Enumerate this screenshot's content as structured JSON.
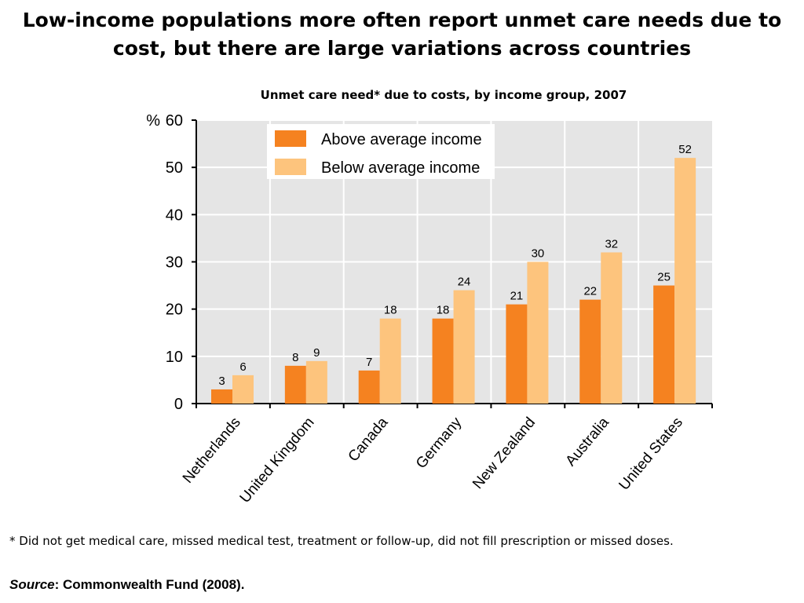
{
  "title_line1": "Low-income populations more often report unmet care needs due to",
  "title_line2": "cost, but there are large variations across countries",
  "footnote": "* Did not get medical care, missed medical test, treatment or follow-up, did not fill prescription or missed doses.",
  "source_label": "Source",
  "source_text": ": Commonwealth Fund (2008).",
  "chart_data": {
    "type": "bar",
    "title": "Unmet care need* due to costs, by income group, 2007",
    "ylabel": "%",
    "ylim": [
      0,
      60
    ],
    "yticks": [
      0,
      10,
      20,
      30,
      40,
      50,
      60
    ],
    "grid": true,
    "legend_position": "top-left",
    "categories": [
      "Netherlands",
      "United Kingdom",
      "Canada",
      "Germany",
      "New Zealand",
      "Australia",
      "United States"
    ],
    "series": [
      {
        "name": "Above average income",
        "color": "#f58220",
        "values": [
          3,
          8,
          7,
          18,
          21,
          22,
          25
        ]
      },
      {
        "name": "Below average income",
        "color": "#fdc47d",
        "values": [
          6,
          9,
          18,
          24,
          30,
          32,
          52
        ]
      }
    ]
  }
}
